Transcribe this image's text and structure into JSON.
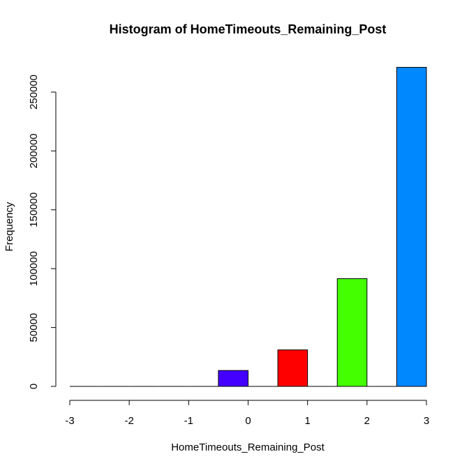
{
  "chart_data": {
    "type": "bar",
    "title": "Histogram of HomeTimeouts_Remaining_Post",
    "xlabel": "HomeTimeouts_Remaining_Post",
    "ylabel": "Frequency",
    "xlim": [
      -3,
      3
    ],
    "ylim": [
      0,
      250000
    ],
    "x_ticks": [
      "-3",
      "-2",
      "-1",
      "0",
      "1",
      "2",
      "3"
    ],
    "y_ticks": [
      "0",
      "50000",
      "100000",
      "150000",
      "200000",
      "250000"
    ],
    "grid": false,
    "bins": [
      {
        "from": -3.0,
        "to": -2.5,
        "value": 0,
        "color": "#ffffff"
      },
      {
        "from": -2.5,
        "to": -2.0,
        "value": 0,
        "color": "#ffffff"
      },
      {
        "from": -2.0,
        "to": -1.5,
        "value": 0,
        "color": "#ffffff"
      },
      {
        "from": -1.5,
        "to": -1.0,
        "value": 0,
        "color": "#ffffff"
      },
      {
        "from": -1.0,
        "to": -0.5,
        "value": 0,
        "color": "#ffffff"
      },
      {
        "from": -0.5,
        "to": 0.0,
        "value": 13500,
        "color": "#4400ff"
      },
      {
        "from": 0.0,
        "to": 0.5,
        "value": 0,
        "color": "#ffffff"
      },
      {
        "from": 0.5,
        "to": 1.0,
        "value": 31000,
        "color": "#ff0000"
      },
      {
        "from": 1.0,
        "to": 1.5,
        "value": 0,
        "color": "#ffffff"
      },
      {
        "from": 1.5,
        "to": 2.0,
        "value": 91500,
        "color": "#44ff00"
      },
      {
        "from": 2.0,
        "to": 2.5,
        "value": 0,
        "color": "#ffffff"
      },
      {
        "from": 2.5,
        "to": 3.0,
        "value": 271000,
        "color": "#0088ff"
      }
    ]
  }
}
